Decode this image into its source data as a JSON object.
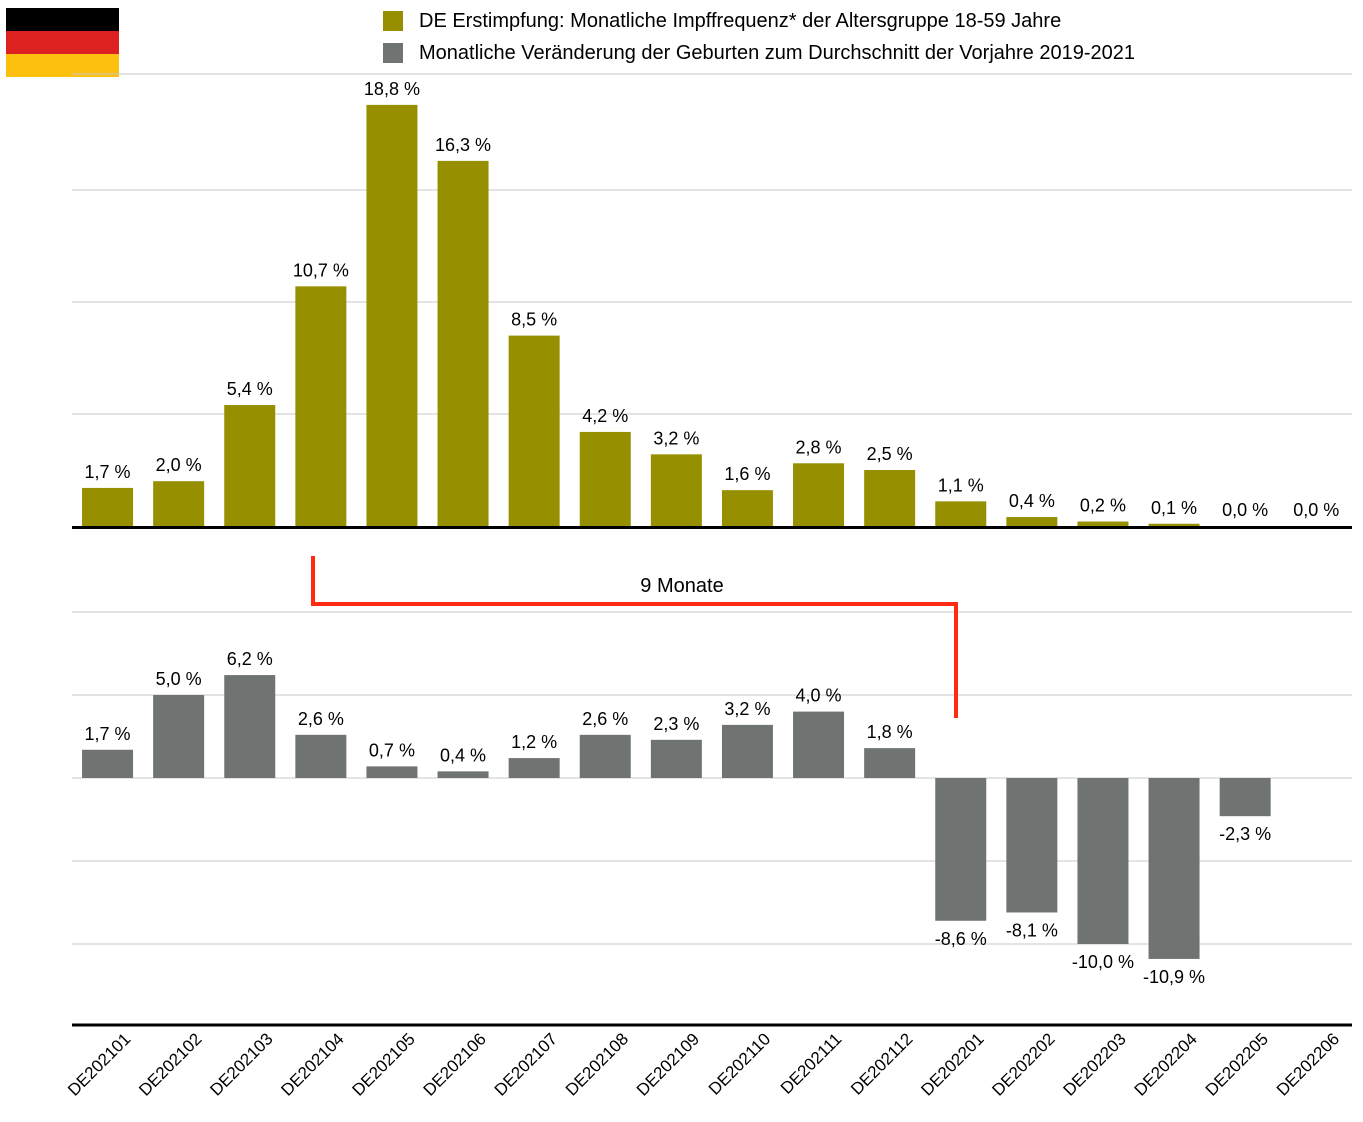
{
  "colors": {
    "vaccination": "#968f00",
    "births": "#6f7472",
    "annotation": "#ff2a12",
    "grid": "#c8c8c8",
    "axis": "#000000",
    "flag_black": "#000000",
    "flag_red": "#dd2020",
    "flag_gold": "#fdc00f"
  },
  "legend": [
    {
      "label": "DE Erstimpfung: Monatliche Impffrequenz* der Altersgruppe 18-59 Jahre",
      "color": "#968f00"
    },
    {
      "label": "Monatliche Veränderung der Geburten zum Durchschnitt der Vorjahre 2019-2021",
      "color": "#6f7472"
    }
  ],
  "annotation": {
    "label": "9 Monate"
  },
  "chart_data": [
    {
      "type": "bar",
      "categories": [
        "DE202101",
        "DE202102",
        "DE202103",
        "DE202104",
        "DE202105",
        "DE202106",
        "DE202107",
        "DE202108",
        "DE202109",
        "DE202110",
        "DE202111",
        "DE202112",
        "DE202201",
        "DE202202",
        "DE202203",
        "DE202204",
        "DE202205",
        "DE202206"
      ],
      "series": [
        {
          "name": "DE Erstimpfung: Monatliche Impffrequenz* der Altersgruppe 18-59 Jahre",
          "values": [
            1.7,
            2.0,
            5.4,
            10.7,
            18.8,
            16.3,
            8.5,
            4.2,
            3.2,
            1.6,
            2.8,
            2.5,
            1.1,
            0.4,
            0.2,
            0.1,
            0.0,
            0.0
          ],
          "labels": [
            "1,7 %",
            "2,0 %",
            "5,4 %",
            "10,7 %",
            "18,8 %",
            "16,3 %",
            "8,5 %",
            "4,2 %",
            "3,2 %",
            "1,6 %",
            "2,8 %",
            "2,5 %",
            "1,1 %",
            "0,4 %",
            "0,2 %",
            "0,1 %",
            "0,0 %",
            "0,0 %"
          ]
        }
      ],
      "ylim": [
        0,
        20
      ],
      "grid": true,
      "title": "",
      "xlabel": "",
      "ylabel": ""
    },
    {
      "type": "bar",
      "categories": [
        "DE202101",
        "DE202102",
        "DE202103",
        "DE202104",
        "DE202105",
        "DE202106",
        "DE202107",
        "DE202108",
        "DE202109",
        "DE202110",
        "DE202111",
        "DE202112",
        "DE202201",
        "DE202202",
        "DE202203",
        "DE202204",
        "DE202205",
        "DE202206"
      ],
      "series": [
        {
          "name": "Monatliche Veränderung der Geburten zum Durchschnitt der Vorjahre 2019-2021",
          "values": [
            1.7,
            5.0,
            6.2,
            2.6,
            0.7,
            0.4,
            1.2,
            2.6,
            2.3,
            3.2,
            4.0,
            1.8,
            -8.6,
            -8.1,
            -10.0,
            -10.9,
            -2.3,
            null
          ],
          "labels": [
            "1,7 %",
            "5,0 %",
            "6,2 %",
            "2,6 %",
            "0,7 %",
            "0,4 %",
            "1,2 %",
            "2,6 %",
            "2,3 %",
            "3,2 %",
            "4,0 %",
            "1,8 %",
            "-8,6 %",
            "-8,1 %",
            "-10,0 %",
            "-10,9 %",
            "-2,3 %",
            ""
          ]
        }
      ],
      "ylim": [
        -15,
        10
      ],
      "grid": true,
      "title": "",
      "xlabel": "",
      "ylabel": ""
    }
  ]
}
